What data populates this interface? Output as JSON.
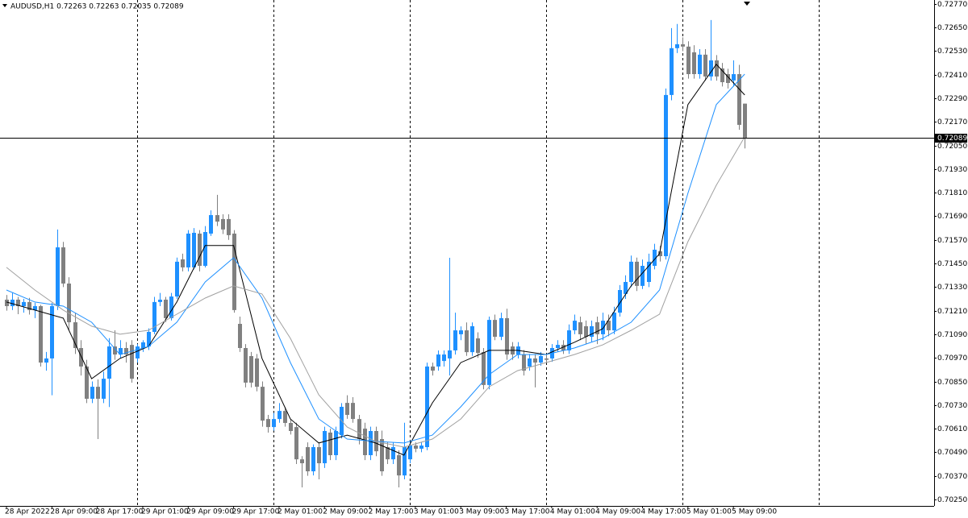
{
  "chart_data": {
    "type": "candlestick",
    "title": "AUDUSD,H1  0.72263 0.72263 0.72035 0.72089",
    "up_color": "#1e90ff",
    "down_color": "#808080",
    "xlim": [
      -1.14,
      163.35
    ],
    "ylim": [
      0.70217,
      0.7279
    ],
    "yticks": [
      {
        "value": 0.7277,
        "label": "0.72770"
      },
      {
        "value": 0.7265,
        "label": "0.72650"
      },
      {
        "value": 0.7253,
        "label": "0.72530"
      },
      {
        "value": 0.7241,
        "label": "0.72410"
      },
      {
        "value": 0.7229,
        "label": "0.72290"
      },
      {
        "value": 0.7217,
        "label": "0.72170"
      },
      {
        "value": 0.7205,
        "label": "0.72050"
      },
      {
        "value": 0.7193,
        "label": "0.71930"
      },
      {
        "value": 0.7181,
        "label": "0.71810"
      },
      {
        "value": 0.7169,
        "label": "0.71690"
      },
      {
        "value": 0.7157,
        "label": "0.71570"
      },
      {
        "value": 0.7145,
        "label": "0.71450"
      },
      {
        "value": 0.7133,
        "label": "0.71330"
      },
      {
        "value": 0.7121,
        "label": "0.71210"
      },
      {
        "value": 0.7109,
        "label": "0.71090"
      },
      {
        "value": 0.7097,
        "label": "0.70970"
      },
      {
        "value": 0.7085,
        "label": "0.70850"
      },
      {
        "value": 0.7073,
        "label": "0.70730"
      },
      {
        "value": 0.7061,
        "label": "0.70610"
      },
      {
        "value": 0.7049,
        "label": "0.70490"
      },
      {
        "value": 0.7037,
        "label": "0.70370"
      },
      {
        "value": 0.7025,
        "label": "0.70250"
      }
    ],
    "vgrid": [
      23,
      47,
      71,
      95,
      119,
      143
    ],
    "current_price": 0.72089,
    "categories": [
      "28 Apr 2022",
      null,
      null,
      null,
      null,
      null,
      null,
      null,
      "28 Apr 09:00",
      null,
      null,
      null,
      null,
      null,
      null,
      null,
      "28 Apr 17:00",
      null,
      null,
      null,
      null,
      null,
      null,
      null,
      "29 Apr 01:00",
      null,
      null,
      null,
      null,
      null,
      null,
      null,
      "29 Apr 09:00",
      null,
      null,
      null,
      null,
      null,
      null,
      null,
      "29 Apr 17:00",
      null,
      null,
      null,
      null,
      null,
      null,
      null,
      "2 May 01:00",
      null,
      null,
      null,
      null,
      null,
      null,
      null,
      "2 May 09:00",
      null,
      null,
      null,
      null,
      null,
      null,
      null,
      "2 May 17:00",
      null,
      null,
      null,
      null,
      null,
      null,
      null,
      "3 May 01:00",
      null,
      null,
      null,
      null,
      null,
      null,
      null,
      "3 May 09:00",
      null,
      null,
      null,
      null,
      null,
      null,
      null,
      "3 May 17:00",
      null,
      null,
      null,
      null,
      null,
      null,
      null,
      "4 May 01:00",
      null,
      null,
      null,
      null,
      null,
      null,
      null,
      "4 May 09:00",
      null,
      null,
      null,
      null,
      null,
      null,
      null,
      "4 May 17:00",
      null,
      null,
      null,
      null,
      null,
      null,
      null,
      "5 May 01:00",
      null,
      null,
      null,
      null,
      null,
      null,
      null,
      "5 May 09:00",
      null,
      null
    ],
    "candles": [
      [
        0.71266,
        0.7129,
        0.7121,
        0.71233
      ],
      [
        0.71233,
        0.713,
        0.71213,
        0.71266
      ],
      [
        0.71266,
        0.7128,
        0.71192,
        0.71233
      ],
      [
        0.71233,
        0.7127,
        0.712,
        0.71254
      ],
      [
        0.71254,
        0.71275,
        0.7119,
        0.71213
      ],
      [
        0.71213,
        0.7125,
        0.71172,
        0.71233
      ],
      [
        0.71233,
        0.7124,
        0.70926,
        0.70946
      ],
      [
        0.70946,
        0.71,
        0.70905,
        0.70967
      ],
      [
        0.70967,
        0.7125,
        0.7078,
        0.71233
      ],
      [
        0.71233,
        0.71623,
        0.71213,
        0.71532
      ],
      [
        0.71532,
        0.7156,
        0.7133,
        0.71348
      ],
      [
        0.71348,
        0.7138,
        0.7111,
        0.71151
      ],
      [
        0.71151,
        0.712,
        0.7099,
        0.7102
      ],
      [
        0.7102,
        0.7106,
        0.7088,
        0.70926
      ],
      [
        0.70926,
        0.7096,
        0.7074,
        0.70762
      ],
      [
        0.70762,
        0.7085,
        0.7074,
        0.70823
      ],
      [
        0.70823,
        0.7086,
        0.70557,
        0.70762
      ],
      [
        0.70762,
        0.709,
        0.7074,
        0.70864
      ],
      [
        0.70864,
        0.7107,
        0.7072,
        0.71028
      ],
      [
        0.71028,
        0.7111,
        0.7096,
        0.70987
      ],
      [
        0.70987,
        0.7106,
        0.70967,
        0.7102
      ],
      [
        0.7102,
        0.7105,
        0.70946,
        0.70987
      ],
      [
        0.71036,
        0.7106,
        0.70844,
        0.70864
      ],
      [
        0.70967,
        0.7104,
        0.70946,
        0.71028
      ],
      [
        0.7102,
        0.7106,
        0.71,
        0.71049
      ],
      [
        0.71028,
        0.7112,
        0.7101,
        0.71102
      ],
      [
        0.71102,
        0.7128,
        0.7109,
        0.71254
      ],
      [
        0.71254,
        0.713,
        0.71233,
        0.71266
      ],
      [
        0.71266,
        0.7128,
        0.71151,
        0.71172
      ],
      [
        0.71172,
        0.713,
        0.7116,
        0.71282
      ],
      [
        0.71282,
        0.7148,
        0.7127,
        0.71459
      ],
      [
        0.71471,
        0.715,
        0.7141,
        0.7143
      ],
      [
        0.7143,
        0.7162,
        0.7141,
        0.71602
      ],
      [
        0.7143,
        0.7163,
        0.7142,
        0.71606
      ],
      [
        0.71602,
        0.7162,
        0.7141,
        0.71438
      ],
      [
        0.71438,
        0.7164,
        0.7143,
        0.7161
      ],
      [
        0.71602,
        0.7172,
        0.7159,
        0.71696
      ],
      [
        0.71696,
        0.71799,
        0.7164,
        0.71663
      ],
      [
        0.71676,
        0.717,
        0.716,
        0.71623
      ],
      [
        0.71676,
        0.717,
        0.7157,
        0.71594
      ],
      [
        0.71602,
        0.7162,
        0.712,
        0.71213
      ],
      [
        0.71143,
        0.7118,
        0.71,
        0.7102
      ],
      [
        0.7102,
        0.7104,
        0.7082,
        0.70844
      ],
      [
        0.70979,
        0.71,
        0.7082,
        0.70844
      ],
      [
        0.70967,
        0.7099,
        0.708,
        0.70823
      ],
      [
        0.70823,
        0.7085,
        0.7062,
        0.70651
      ],
      [
        0.70659,
        0.7068,
        0.7059,
        0.70618
      ],
      [
        0.70618,
        0.7069,
        0.706,
        0.70659
      ],
      [
        0.70659,
        0.7074,
        0.7064,
        0.707
      ],
      [
        0.707,
        0.7072,
        0.7062,
        0.70639
      ],
      [
        0.70639,
        0.7066,
        0.7058,
        0.70598
      ],
      [
        0.70618,
        0.7064,
        0.7043,
        0.70454
      ],
      [
        0.70454,
        0.7047,
        0.70311,
        0.70434
      ],
      [
        0.70516,
        0.7054,
        0.7037,
        0.70393
      ],
      [
        0.70393,
        0.7053,
        0.70372,
        0.70516
      ],
      [
        0.70516,
        0.7054,
        0.70352,
        0.70434
      ],
      [
        0.70434,
        0.7062,
        0.7041,
        0.70598
      ],
      [
        0.7059,
        0.7061,
        0.7045,
        0.70475
      ],
      [
        0.70475,
        0.7062,
        0.7045,
        0.70598
      ],
      [
        0.70577,
        0.7074,
        0.7056,
        0.70721
      ],
      [
        0.70741,
        0.7078,
        0.7066,
        0.7068
      ],
      [
        0.70741,
        0.7077,
        0.7064,
        0.70659
      ],
      [
        0.70659,
        0.7068,
        0.7053,
        0.70557
      ],
      [
        0.7061,
        0.7064,
        0.7045,
        0.70475
      ],
      [
        0.70475,
        0.7062,
        0.7045,
        0.70598
      ],
      [
        0.70598,
        0.7062,
        0.7047,
        0.70495
      ],
      [
        0.70557,
        0.706,
        0.7037,
        0.70393
      ],
      [
        0.70516,
        0.7054,
        0.7043,
        0.70454
      ],
      [
        0.70454,
        0.7054,
        0.7043,
        0.70516
      ],
      [
        0.70475,
        0.705,
        0.70311,
        0.70372
      ],
      [
        0.70372,
        0.7064,
        0.70352,
        0.70516
      ],
      [
        0.70454,
        0.7054,
        0.70434,
        0.70524
      ],
      [
        0.70524,
        0.7054,
        0.7049,
        0.70508
      ],
      [
        0.70508,
        0.7054,
        0.7049,
        0.70524
      ],
      [
        0.70516,
        0.70946,
        0.705,
        0.70926
      ],
      [
        0.70926,
        0.70946,
        0.7088,
        0.70905
      ],
      [
        0.70926,
        0.71008,
        0.70905,
        0.70987
      ],
      [
        0.70954,
        0.71008,
        0.70926,
        0.70987
      ],
      [
        0.70967,
        0.71479,
        0.7088,
        0.71008
      ],
      [
        0.71008,
        0.712,
        0.70987,
        0.7111
      ],
      [
        0.7109,
        0.7113,
        0.7106,
        0.7111
      ],
      [
        0.7111,
        0.7115,
        0.7098,
        0.70999
      ],
      [
        0.70999,
        0.7115,
        0.7098,
        0.71131
      ],
      [
        0.71069,
        0.711,
        0.7097,
        0.70995
      ],
      [
        0.70999,
        0.7102,
        0.7081,
        0.70832
      ],
      [
        0.70832,
        0.7118,
        0.7081,
        0.71163
      ],
      [
        0.71163,
        0.7119,
        0.7106,
        0.71077
      ],
      [
        0.71077,
        0.712,
        0.7106,
        0.71172
      ],
      [
        0.71172,
        0.7122,
        0.7096,
        0.70987
      ],
      [
        0.71028,
        0.7105,
        0.7096,
        0.70987
      ],
      [
        0.70987,
        0.7105,
        0.70967,
        0.71028
      ],
      [
        0.70987,
        0.7101,
        0.7088,
        0.70905
      ],
      [
        0.70926,
        0.7099,
        0.70905,
        0.70967
      ],
      [
        0.70967,
        0.7099,
        0.7082,
        0.70946
      ],
      [
        0.70946,
        0.71,
        0.7093,
        0.70979
      ],
      [
        0.70967,
        0.7099,
        0.70946,
        0.7096
      ],
      [
        0.70967,
        0.7104,
        0.7095,
        0.7102
      ],
      [
        0.7102,
        0.7106,
        0.71,
        0.71036
      ],
      [
        0.71036,
        0.7106,
        0.7099,
        0.71008
      ],
      [
        0.71008,
        0.7114,
        0.7099,
        0.7111
      ],
      [
        0.7111,
        0.7119,
        0.7109,
        0.71159
      ],
      [
        0.71151,
        0.7118,
        0.7106,
        0.7109
      ],
      [
        0.71131,
        0.7116,
        0.7104,
        0.71077
      ],
      [
        0.71077,
        0.7116,
        0.7105,
        0.71131
      ],
      [
        0.71151,
        0.7118,
        0.7104,
        0.7109
      ],
      [
        0.7109,
        0.712,
        0.7106,
        0.71159
      ],
      [
        0.71159,
        0.7119,
        0.7108,
        0.7111
      ],
      [
        0.7111,
        0.7123,
        0.7109,
        0.712
      ],
      [
        0.712,
        0.7134,
        0.7118,
        0.71315
      ],
      [
        0.71295,
        0.7139,
        0.7127,
        0.71356
      ],
      [
        0.71356,
        0.7149,
        0.7133,
        0.71459
      ],
      [
        0.71459,
        0.7148,
        0.7131,
        0.71336
      ],
      [
        0.71336,
        0.7147,
        0.7132,
        0.71438
      ],
      [
        0.71356,
        0.715,
        0.7133,
        0.71459
      ],
      [
        0.71438,
        0.7155,
        0.7142,
        0.7152
      ],
      [
        0.71512,
        0.7154,
        0.7146,
        0.71487
      ],
      [
        0.71487,
        0.7234,
        0.7147,
        0.72307
      ],
      [
        0.72307,
        0.72647,
        0.7228,
        0.72545
      ],
      [
        0.72545,
        0.72668,
        0.7252,
        0.72565
      ],
      [
        0.72565,
        0.726,
        0.7253,
        0.72553
      ],
      [
        0.72553,
        0.7258,
        0.7239,
        0.72413
      ],
      [
        0.72524,
        0.7256,
        0.7239,
        0.72413
      ],
      [
        0.72413,
        0.7254,
        0.7239,
        0.72512
      ],
      [
        0.72512,
        0.7254,
        0.7238,
        0.72401
      ],
      [
        0.72401,
        0.72688,
        0.7238,
        0.72483
      ],
      [
        0.72483,
        0.7251,
        0.7238,
        0.72401
      ],
      [
        0.72442,
        0.7247,
        0.7235,
        0.72372
      ],
      [
        0.72413,
        0.7244,
        0.7234,
        0.72368
      ],
      [
        0.72381,
        0.72483,
        0.7235,
        0.72413
      ],
      [
        0.72413,
        0.7246,
        0.7213,
        0.72155
      ],
      [
        0.72263,
        0.72263,
        0.72035,
        0.72089
      ]
    ],
    "line_x": [
      0,
      5,
      10,
      15,
      20,
      25,
      30,
      35,
      40,
      45,
      50,
      55,
      60,
      65,
      70,
      75,
      80,
      85,
      90,
      95,
      100,
      105,
      110,
      115,
      120,
      125,
      130
    ],
    "lines": [
      {
        "color": "#000000",
        "values": [
          0.71254,
          0.71213,
          0.71172,
          0.70864,
          0.70967,
          0.71028,
          0.71254,
          0.71541,
          0.71541,
          0.70967,
          0.70659,
          0.70537,
          0.70577,
          0.70537,
          0.70475,
          0.70741,
          0.70946,
          0.71008,
          0.71008,
          0.70987,
          0.71049,
          0.71118,
          0.71336,
          0.715,
          0.72258,
          0.72463,
          0.72307
        ]
      },
      {
        "color": "#1e90ff",
        "values": [
          0.71315,
          0.71254,
          0.71233,
          0.71151,
          0.70987,
          0.71028,
          0.71151,
          0.71356,
          0.71479,
          0.71274,
          0.70946,
          0.70659,
          0.70557,
          0.70545,
          0.70537,
          0.70577,
          0.70721,
          0.70885,
          0.70987,
          0.70987,
          0.7102,
          0.71069,
          0.71151,
          0.71315,
          0.71807,
          0.72258,
          0.72413
        ]
      },
      {
        "color": "#a0a0a0",
        "values": [
          0.7143,
          0.71315,
          0.71213,
          0.71131,
          0.7109,
          0.7111,
          0.71192,
          0.71274,
          0.71336,
          0.71295,
          0.71069,
          0.70782,
          0.70618,
          0.70545,
          0.70516,
          0.70557,
          0.70659,
          0.70823,
          0.70905,
          0.70946,
          0.70987,
          0.71036,
          0.7111,
          0.71192,
          0.71561,
          0.71848,
          0.72094
        ]
      }
    ]
  }
}
